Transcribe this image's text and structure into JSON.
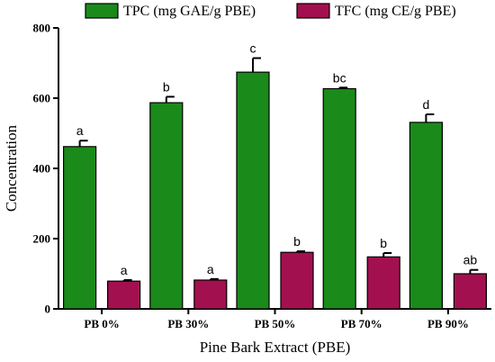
{
  "chart_data": {
    "type": "bar",
    "categories": [
      "PB 0%",
      "PB 30%",
      "PB 50%",
      "PB 70%",
      "PB 90%"
    ],
    "series": [
      {
        "name": "TPC (mg GAE/g PBE)",
        "color": "#1a8a1a",
        "values": [
          462,
          587,
          674,
          627,
          531
        ],
        "errors": [
          17,
          17,
          40,
          3,
          23
        ],
        "labels": [
          "a",
          "b",
          "c",
          "bc",
          "d"
        ]
      },
      {
        "name": "TFC (mg CE/g PBE)",
        "color": "#a3104f",
        "values": [
          79,
          82,
          161,
          148,
          100
        ],
        "errors": [
          3,
          3,
          3,
          11,
          11
        ],
        "labels": [
          "a",
          "a",
          "b",
          "b",
          "ab"
        ]
      }
    ],
    "xlabel": "Pine Bark Extract (PBE)",
    "ylabel": "Concentration",
    "ylim": [
      0,
      800
    ],
    "yticks": [
      0,
      200,
      400,
      600,
      800
    ],
    "legend_position": "top"
  }
}
